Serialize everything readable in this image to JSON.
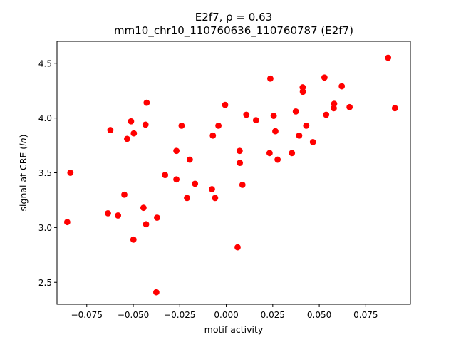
{
  "chart_data": {
    "type": "scatter",
    "title_line1": "E2f7, ρ = 0.63",
    "title_line2": "mm10_chr10_110760636_110760787 (E2f7)",
    "xlabel": "motif activity",
    "ylabel_prefix": "signal at CRE (",
    "ylabel_italic": "ln",
    "ylabel_suffix": ")",
    "xlim": [
      -0.091,
      0.099
    ],
    "ylim": [
      2.3,
      4.7
    ],
    "x_ticks": [
      -0.075,
      -0.05,
      -0.025,
      0.0,
      0.025,
      0.05,
      0.075
    ],
    "x_tick_labels": [
      "−0.075",
      "−0.050",
      "−0.025",
      "0.000",
      "0.025",
      "0.050",
      "0.075"
    ],
    "y_ticks": [
      2.5,
      3.0,
      3.5,
      4.0,
      4.5
    ],
    "y_tick_labels": [
      "2.5",
      "3.0",
      "3.5",
      "4.0",
      "4.5"
    ],
    "grid": false,
    "marker_color": "#ff0000",
    "points": [
      {
        "x": -0.0855,
        "y": 3.05
      },
      {
        "x": -0.0838,
        "y": 3.5
      },
      {
        "x": -0.0636,
        "y": 3.13
      },
      {
        "x": -0.0623,
        "y": 3.89
      },
      {
        "x": -0.0582,
        "y": 3.11
      },
      {
        "x": -0.0548,
        "y": 3.3
      },
      {
        "x": -0.0533,
        "y": 3.81
      },
      {
        "x": -0.0512,
        "y": 3.97
      },
      {
        "x": -0.0497,
        "y": 3.86
      },
      {
        "x": -0.0499,
        "y": 2.89
      },
      {
        "x": -0.0445,
        "y": 3.18
      },
      {
        "x": -0.0434,
        "y": 3.94
      },
      {
        "x": -0.0428,
        "y": 4.14
      },
      {
        "x": -0.0431,
        "y": 3.03
      },
      {
        "x": -0.0372,
        "y": 3.09
      },
      {
        "x": -0.0376,
        "y": 2.41
      },
      {
        "x": -0.0329,
        "y": 3.48
      },
      {
        "x": -0.0268,
        "y": 3.7
      },
      {
        "x": -0.0268,
        "y": 3.44
      },
      {
        "x": -0.024,
        "y": 3.93
      },
      {
        "x": -0.0211,
        "y": 3.27
      },
      {
        "x": -0.0196,
        "y": 3.62
      },
      {
        "x": -0.0168,
        "y": 3.4
      },
      {
        "x": -0.0077,
        "y": 3.35
      },
      {
        "x": -0.0072,
        "y": 3.84
      },
      {
        "x": -0.006,
        "y": 3.27
      },
      {
        "x": -0.0042,
        "y": 3.93
      },
      {
        "x": -0.0006,
        "y": 4.12
      },
      {
        "x": 0.0061,
        "y": 2.82
      },
      {
        "x": 0.0072,
        "y": 3.7
      },
      {
        "x": 0.0073,
        "y": 3.59
      },
      {
        "x": 0.0087,
        "y": 3.39
      },
      {
        "x": 0.0108,
        "y": 4.03
      },
      {
        "x": 0.016,
        "y": 3.98
      },
      {
        "x": 0.0233,
        "y": 3.68
      },
      {
        "x": 0.0237,
        "y": 4.36
      },
      {
        "x": 0.0255,
        "y": 4.02
      },
      {
        "x": 0.0264,
        "y": 3.88
      },
      {
        "x": 0.0276,
        "y": 3.62
      },
      {
        "x": 0.0353,
        "y": 3.68
      },
      {
        "x": 0.0374,
        "y": 4.06
      },
      {
        "x": 0.0392,
        "y": 3.84
      },
      {
        "x": 0.0411,
        "y": 4.28
      },
      {
        "x": 0.0412,
        "y": 4.24
      },
      {
        "x": 0.043,
        "y": 3.93
      },
      {
        "x": 0.0466,
        "y": 3.78
      },
      {
        "x": 0.0528,
        "y": 4.37
      },
      {
        "x": 0.0537,
        "y": 4.03
      },
      {
        "x": 0.0578,
        "y": 4.09
      },
      {
        "x": 0.058,
        "y": 4.13
      },
      {
        "x": 0.0621,
        "y": 4.29
      },
      {
        "x": 0.0663,
        "y": 4.1
      },
      {
        "x": 0.087,
        "y": 4.55
      },
      {
        "x": 0.0907,
        "y": 4.09
      }
    ]
  }
}
